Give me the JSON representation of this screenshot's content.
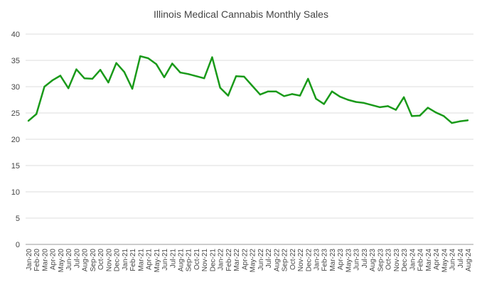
{
  "chart_data": {
    "type": "line",
    "title": "Illinois Medical Cannabis Monthly Sales",
    "xlabel": "",
    "ylabel": "",
    "ylim": [
      0,
      40
    ],
    "yticks": [
      0,
      5,
      10,
      15,
      20,
      25,
      30,
      35,
      40
    ],
    "grid": true,
    "color": "#1a9a1a",
    "categories": [
      "Jan-20",
      "Feb-20",
      "Mar-20",
      "Apr-20",
      "May-20",
      "Jun-20",
      "Jul-20",
      "Aug-20",
      "Sep-20",
      "Oct-20",
      "Nov-20",
      "Dec-20",
      "Jan-21",
      "Feb-21",
      "Mar-21",
      "Apr-21",
      "May-21",
      "Jun-21",
      "Jul-21",
      "Aug-21",
      "Sep-21",
      "Oct-21",
      "Nov-21",
      "Dec-21",
      "Jan-22",
      "Feb-22",
      "Mar-22",
      "Apr-22",
      "May-22",
      "Jun-22",
      "Jul-22",
      "Aug-22",
      "Sep-22",
      "Oct-22",
      "Nov-22",
      "Dec-22",
      "Jan-23",
      "Feb-23",
      "Mar-23",
      "Apr-23",
      "May-23",
      "Jun-23",
      "Jul-23",
      "Aug-23",
      "Sep-23",
      "Oct-23",
      "Nov-23",
      "Dec-23",
      "Jan-24",
      "Feb-24",
      "Mar-24",
      "Apr-24",
      "May-24",
      "Jun-24",
      "Jul-24",
      "Aug-24"
    ],
    "values": [
      23.5,
      24.8,
      30.0,
      31.2,
      32.1,
      29.7,
      33.3,
      31.6,
      31.5,
      33.2,
      30.8,
      34.5,
      32.8,
      29.6,
      35.8,
      35.4,
      34.3,
      31.8,
      34.4,
      32.7,
      32.4,
      32.0,
      31.6,
      35.6,
      29.8,
      28.3,
      32.0,
      31.9,
      30.2,
      28.5,
      29.1,
      29.1,
      28.2,
      28.6,
      28.3,
      31.5,
      27.7,
      26.7,
      29.1,
      28.1,
      27.5,
      27.1,
      26.9,
      26.5,
      26.1,
      26.3,
      25.6,
      28.0,
      24.4,
      24.5,
      26.0,
      25.1,
      24.4,
      23.1,
      23.4,
      23.6
    ]
  }
}
